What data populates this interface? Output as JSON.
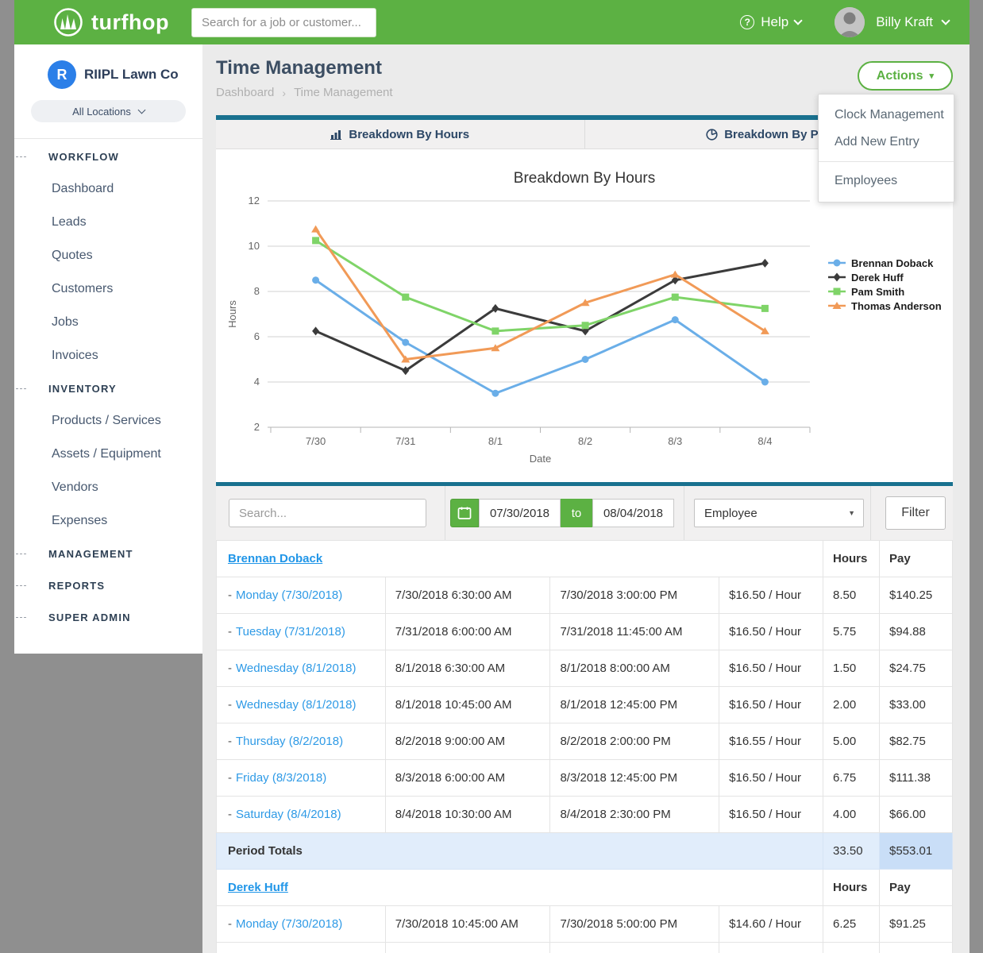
{
  "header": {
    "logo_text": "turfhop",
    "search_placeholder": "Search for a job or customer...",
    "help_label": "Help",
    "user_name": "Billy Kraft"
  },
  "sidebar": {
    "company_initial": "R",
    "company_name": "RIIPL Lawn Co",
    "location_selector": "All Locations",
    "sections": [
      {
        "label": "WORKFLOW",
        "items": [
          "Dashboard",
          "Leads",
          "Quotes",
          "Customers",
          "Jobs",
          "Invoices"
        ]
      },
      {
        "label": "INVENTORY",
        "items": [
          "Products / Services",
          "Assets / Equipment",
          "Vendors",
          "Expenses"
        ]
      },
      {
        "label": "MANAGEMENT",
        "items": []
      },
      {
        "label": "REPORTS",
        "items": []
      },
      {
        "label": "SUPER ADMIN",
        "items": []
      }
    ]
  },
  "page": {
    "title": "Time Management",
    "breadcrumb": [
      "Dashboard",
      "Time Management"
    ],
    "actions_button": "Actions",
    "actions_menu_groups": [
      [
        "Clock Management",
        "Add New Entry"
      ],
      [
        "Employees"
      ]
    ]
  },
  "tabs": [
    {
      "label": "Breakdown By Hours",
      "icon": "bar-chart-icon"
    },
    {
      "label": "Breakdown By Pay",
      "icon": "pie-chart-icon"
    }
  ],
  "chart_data": {
    "type": "line",
    "title": "Breakdown By Hours",
    "xlabel": "Date",
    "ylabel": "Hours",
    "x": [
      "7/30",
      "7/31",
      "8/1",
      "8/2",
      "8/3",
      "8/4"
    ],
    "ylim": [
      2,
      12
    ],
    "yticks": [
      2,
      4,
      6,
      8,
      10,
      12
    ],
    "grid": true,
    "legend_position": "right",
    "series": [
      {
        "name": "Brennan Doback",
        "color": "#6aaee8",
        "marker": "circle",
        "values": [
          8.5,
          5.75,
          3.5,
          5.0,
          6.75,
          4.0
        ]
      },
      {
        "name": "Derek Huff",
        "color": "#3b3b3b",
        "marker": "diamond",
        "values": [
          6.25,
          4.5,
          7.25,
          6.25,
          8.5,
          9.25
        ]
      },
      {
        "name": "Pam Smith",
        "color": "#7fd468",
        "marker": "square",
        "values": [
          10.25,
          7.75,
          6.25,
          6.5,
          7.75,
          7.25
        ]
      },
      {
        "name": "Thomas Anderson",
        "color": "#f19a57",
        "marker": "triangle",
        "values": [
          10.75,
          5.0,
          5.5,
          7.5,
          8.75,
          6.25
        ]
      }
    ]
  },
  "filters": {
    "search_placeholder": "Search...",
    "date_from": "07/30/2018",
    "date_to_label": "to",
    "date_to": "08/04/2018",
    "employee_select": "Employee",
    "filter_button": "Filter"
  },
  "table": {
    "hours_header": "Hours",
    "pay_header": "Pay",
    "row_prefix": "-",
    "groups": [
      {
        "employee": "Brennan Doback",
        "rows": [
          {
            "day": "Monday (7/30/2018)",
            "clock_in": "7/30/2018 6:30:00 AM",
            "clock_out": "7/30/2018 3:00:00 PM",
            "rate": "$16.50 / Hour",
            "hours": "8.50",
            "pay": "$140.25"
          },
          {
            "day": "Tuesday (7/31/2018)",
            "clock_in": "7/31/2018 6:00:00 AM",
            "clock_out": "7/31/2018 11:45:00 AM",
            "rate": "$16.50 / Hour",
            "hours": "5.75",
            "pay": "$94.88"
          },
          {
            "day": "Wednesday (8/1/2018)",
            "clock_in": "8/1/2018 6:30:00 AM",
            "clock_out": "8/1/2018 8:00:00 AM",
            "rate": "$16.50 / Hour",
            "hours": "1.50",
            "pay": "$24.75"
          },
          {
            "day": "Wednesday (8/1/2018)",
            "clock_in": "8/1/2018 10:45:00 AM",
            "clock_out": "8/1/2018 12:45:00 PM",
            "rate": "$16.50 / Hour",
            "hours": "2.00",
            "pay": "$33.00"
          },
          {
            "day": "Thursday (8/2/2018)",
            "clock_in": "8/2/2018 9:00:00 AM",
            "clock_out": "8/2/2018 2:00:00 PM",
            "rate": "$16.55 / Hour",
            "hours": "5.00",
            "pay": "$82.75"
          },
          {
            "day": "Friday (8/3/2018)",
            "clock_in": "8/3/2018 6:00:00 AM",
            "clock_out": "8/3/2018 12:45:00 PM",
            "rate": "$16.50 / Hour",
            "hours": "6.75",
            "pay": "$111.38"
          },
          {
            "day": "Saturday (8/4/2018)",
            "clock_in": "8/4/2018 10:30:00 AM",
            "clock_out": "8/4/2018 2:30:00 PM",
            "rate": "$16.50 / Hour",
            "hours": "4.00",
            "pay": "$66.00"
          }
        ],
        "totals": {
          "label": "Period Totals",
          "hours": "33.50",
          "pay": "$553.01"
        }
      },
      {
        "employee": "Derek Huff",
        "rows": [
          {
            "day": "Monday (7/30/2018)",
            "clock_in": "7/30/2018 10:45:00 AM",
            "clock_out": "7/30/2018 5:00:00 PM",
            "rate": "$14.60 / Hour",
            "hours": "6.25",
            "pay": "$91.25"
          }
        ]
      }
    ]
  }
}
